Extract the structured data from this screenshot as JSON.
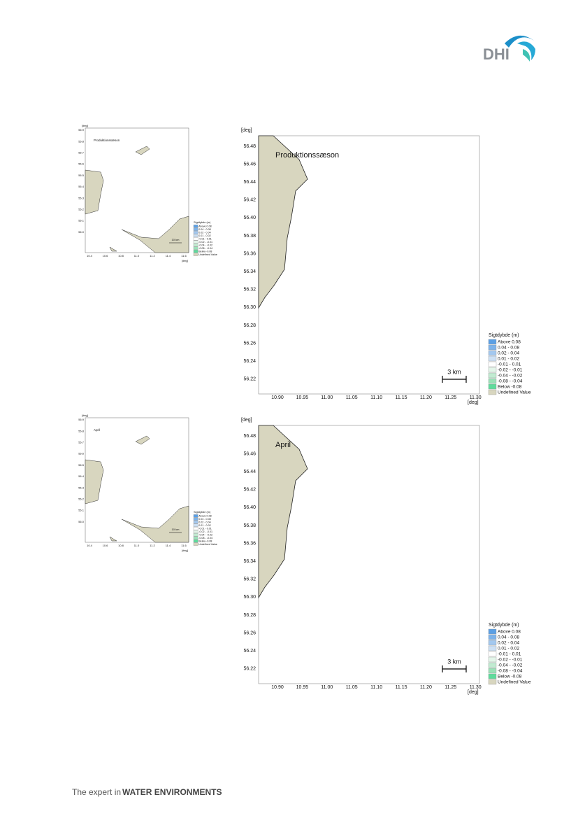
{
  "header": {
    "logo": "DHI"
  },
  "map": {
    "x_unit": "[deg]",
    "y_unit": "[deg]",
    "xticks": [
      "10.90",
      "10.95",
      "11.00",
      "11.05",
      "11.10",
      "11.15",
      "11.20",
      "11.25",
      "11.30"
    ],
    "yticks": [
      "56.48",
      "56.46",
      "56.44",
      "56.42",
      "56.40",
      "56.38",
      "56.36",
      "56.34",
      "56.32",
      "56.30",
      "56.28",
      "56.26",
      "56.24",
      "56.22"
    ],
    "scale_bar": "3 km"
  },
  "overview": {
    "x_unit": "[deg]",
    "y_unit": "[deg]",
    "xticks": [
      "10.4",
      "10.6",
      "10.8",
      "11.0",
      "11.2",
      "11.4",
      "11.6"
    ],
    "yticks": [
      "56.9",
      "56.8",
      "56.7",
      "56.6",
      "56.5",
      "56.4",
      "56.3",
      "56.2",
      "56.1",
      "56.0"
    ],
    "scale_bar": "10 km"
  },
  "legend": {
    "title": "Sigtdybde (m)",
    "entries": [
      {
        "label": "Above  0.08",
        "color": "#5b9fe4"
      },
      {
        "label": "0.04 -  0.08",
        "color": "#7db3ea"
      },
      {
        "label": "0.02 -  0.04",
        "color": "#a3c8ef"
      },
      {
        "label": "0.01 -  0.02",
        "color": "#cde0f4"
      },
      {
        "label": "-0.01 -  0.01",
        "color": "#ffffff"
      },
      {
        "label": "-0.02 - -0.01",
        "color": "#e3f5e9"
      },
      {
        "label": "-0.04 - -0.02",
        "color": "#c1ebd1"
      },
      {
        "label": "-0.08 - -0.04",
        "color": "#9be2b8"
      },
      {
        "label": "Below -0.08",
        "color": "#5edb9c"
      },
      {
        "label": "Undefined Value",
        "color": "#d8d6bf"
      }
    ]
  },
  "panels": [
    {
      "label": "Produktionssæson"
    },
    {
      "label": "April"
    }
  ],
  "footer": {
    "lead": "The expert in",
    "emphasis": "WATER ENVIRONMENTS"
  }
}
